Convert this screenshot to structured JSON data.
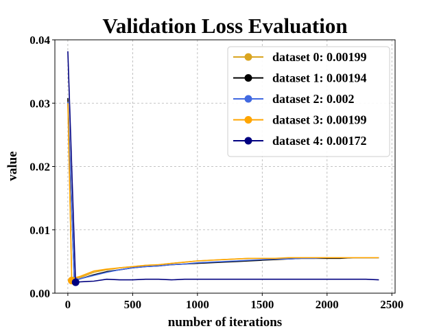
{
  "chart_data": {
    "type": "line",
    "title": "Validation Loss Evaluation",
    "xlabel": "number of iterations",
    "ylabel": "value",
    "xlim": [
      -100,
      2525
    ],
    "ylim": [
      0,
      0.04
    ],
    "xticks": [
      0,
      500,
      1000,
      1500,
      2000,
      2500
    ],
    "xtick_labels": [
      "0",
      "500",
      "1000",
      "1500",
      "2000",
      "2500"
    ],
    "yticks": [
      0,
      0.01,
      0.02,
      0.03,
      0.04
    ],
    "ytick_labels": [
      "0.00",
      "0.01",
      "0.02",
      "0.03",
      "0.04"
    ],
    "grid": true,
    "legend_position": "top-right",
    "series": [
      {
        "name": "dataset 0: 0.00199",
        "color": "#DAA520",
        "min_point": [
          30,
          0.00199
        ],
        "x": [
          0,
          30,
          50,
          100,
          200,
          300,
          400,
          500,
          600,
          700,
          800,
          900,
          1000,
          1100,
          1200,
          1300,
          1400,
          1500,
          1600,
          1700,
          1800,
          1900,
          2000,
          2100,
          2200,
          2300,
          2400
        ],
        "values": [
          0.0305,
          0.00199,
          0.0022,
          0.0025,
          0.0033,
          0.0037,
          0.004,
          0.0042,
          0.0044,
          0.0045,
          0.0047,
          0.0049,
          0.0051,
          0.0052,
          0.0053,
          0.0054,
          0.0055,
          0.0055,
          0.0055,
          0.0055,
          0.0056,
          0.0056,
          0.0056,
          0.0056,
          0.0056,
          0.0056,
          0.0056
        ]
      },
      {
        "name": "dataset 1: 0.00194",
        "color": "#000000",
        "min_point": [
          50,
          0.00194
        ],
        "x": [
          0,
          50,
          100,
          200,
          300,
          400,
          500,
          600,
          700,
          800,
          900,
          1000,
          1100,
          1200,
          1300,
          1400,
          1500,
          1600,
          1700,
          1800,
          1900,
          2000,
          2100,
          2200,
          2300,
          2400
        ],
        "values": [
          0.0308,
          0.00194,
          0.0023,
          0.0029,
          0.0034,
          0.0037,
          0.004,
          0.0042,
          0.0043,
          0.0045,
          0.0046,
          0.0047,
          0.0048,
          0.0049,
          0.005,
          0.0051,
          0.0052,
          0.0053,
          0.0054,
          0.0055,
          0.0055,
          0.0055,
          0.0055,
          0.0056,
          0.0056,
          0.0056
        ]
      },
      {
        "name": "dataset 2: 0.002",
        "color": "#4169E1",
        "min_point": [
          50,
          0.002
        ],
        "x": [
          0,
          50,
          100,
          200,
          300,
          400,
          500,
          600,
          700,
          800,
          900,
          1000,
          1100,
          1200,
          1300,
          1400,
          1500,
          1600,
          1700,
          1800,
          1900,
          2000,
          2100,
          2200,
          2300,
          2400
        ],
        "values": [
          0.0302,
          0.002,
          0.0023,
          0.0028,
          0.0033,
          0.0037,
          0.004,
          0.0042,
          0.0043,
          0.0045,
          0.0046,
          0.0048,
          0.0049,
          0.005,
          0.0051,
          0.0052,
          0.0053,
          0.0054,
          0.0054,
          0.0055,
          0.0055,
          0.0056,
          0.0056,
          0.0056,
          0.0056,
          0.0056
        ]
      },
      {
        "name": "dataset 3: 0.00199",
        "color": "#FFA500",
        "min_point": [
          30,
          0.00199
        ],
        "x": [
          0,
          30,
          50,
          100,
          200,
          300,
          400,
          500,
          600,
          700,
          800,
          900,
          1000,
          1100,
          1200,
          1300,
          1400,
          1500,
          1600,
          1700,
          1800,
          1900,
          2000,
          2100,
          2200,
          2300,
          2400
        ],
        "values": [
          0.03,
          0.00199,
          0.0024,
          0.0027,
          0.0035,
          0.0038,
          0.004,
          0.0042,
          0.0044,
          0.0045,
          0.0047,
          0.0049,
          0.0051,
          0.0052,
          0.0053,
          0.0054,
          0.0055,
          0.0055,
          0.0055,
          0.0056,
          0.0056,
          0.0056,
          0.0056,
          0.0056,
          0.0056,
          0.0056,
          0.0056
        ]
      },
      {
        "name": "dataset 4: 0.00172",
        "color": "#000080",
        "min_point": [
          60,
          0.00172
        ],
        "x": [
          0,
          60,
          100,
          200,
          300,
          400,
          500,
          600,
          700,
          800,
          900,
          1000,
          1100,
          1200,
          1300,
          1400,
          1500,
          1600,
          1700,
          1800,
          1900,
          2000,
          2100,
          2200,
          2300,
          2400
        ],
        "values": [
          0.0382,
          0.00172,
          0.0018,
          0.0019,
          0.0022,
          0.0021,
          0.0021,
          0.0022,
          0.0022,
          0.0021,
          0.0022,
          0.0022,
          0.0022,
          0.0022,
          0.0022,
          0.0022,
          0.0022,
          0.0022,
          0.0022,
          0.0022,
          0.0022,
          0.0022,
          0.0022,
          0.0022,
          0.0022,
          0.0021
        ]
      }
    ]
  }
}
